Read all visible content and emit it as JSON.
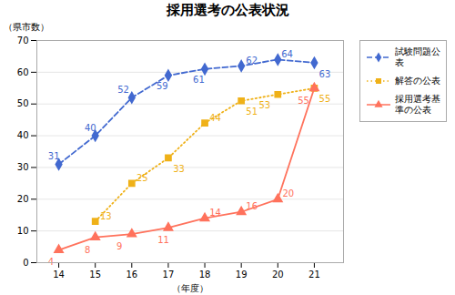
{
  "chart_data": {
    "type": "line",
    "title": "採用選考の公表状況",
    "xlabel": "（年度）",
    "ylabel": "（県市数）",
    "x": [
      14,
      15,
      16,
      17,
      18,
      19,
      20,
      21
    ],
    "series": [
      {
        "name": "試験問題公\n表",
        "values": [
          31,
          40,
          52,
          59,
          61,
          62,
          64,
          63
        ],
        "marker": "diamond",
        "line_style": "dashed"
      },
      {
        "name": "解答の公表",
        "values": [
          null,
          13,
          25,
          33,
          44,
          51,
          53,
          55
        ],
        "marker": "square",
        "line_style": "dotted"
      },
      {
        "name": "採用選考基\n準の公表",
        "values": [
          4,
          8,
          9,
          11,
          14,
          16,
          20,
          55
        ],
        "marker": "triangle",
        "line_style": "solid"
      }
    ],
    "xlim": [
      13.4,
      21.8
    ],
    "xticks": [
      14,
      15,
      16,
      17,
      18,
      19,
      20,
      21
    ],
    "ylim": [
      0,
      70
    ],
    "yticks": [
      0,
      10,
      20,
      30,
      40,
      50,
      60,
      70
    ],
    "grid": true,
    "legend": "right",
    "data_labels": true
  }
}
